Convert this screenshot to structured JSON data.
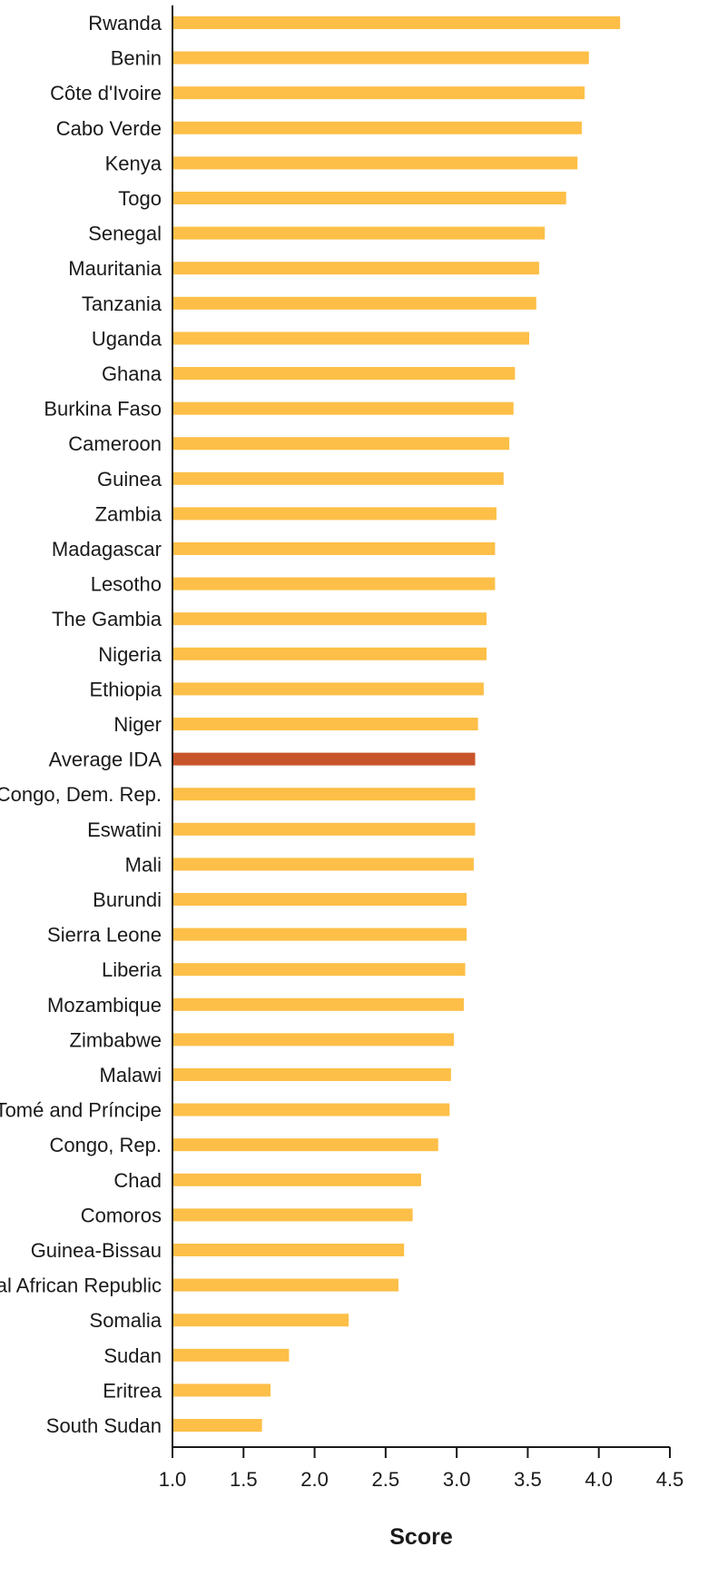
{
  "chart_data": {
    "type": "bar",
    "orientation": "horizontal",
    "xlabel": "Score",
    "xlim": [
      1.0,
      4.5
    ],
    "xticks": [
      "1.0",
      "1.5",
      "2.0",
      "2.5",
      "3.0",
      "3.5",
      "4.0",
      "4.5"
    ],
    "grid": false,
    "colors": {
      "bar": "#FDBF47",
      "highlight": "#C8542A"
    },
    "highlight": "Average IDA",
    "categories": [
      "Rwanda",
      "Benin",
      "Côte d'Ivoire",
      "Cabo Verde",
      "Kenya",
      "Togo",
      "Senegal",
      "Mauritania",
      "Tanzania",
      "Uganda",
      "Ghana",
      "Burkina Faso",
      "Cameroon",
      "Guinea",
      "Zambia",
      "Madagascar",
      "Lesotho",
      "The Gambia",
      "Nigeria",
      "Ethiopia",
      "Niger",
      "Average IDA",
      "Congo, Dem. Rep.",
      "Eswatini",
      "Mali",
      "Burundi",
      "Sierra Leone",
      "Liberia",
      "Mozambique",
      "Zimbabwe",
      "Malawi",
      "São Tomé and Príncipe",
      "Congo, Rep.",
      "Chad",
      "Comoros",
      "Guinea-Bissau",
      "Central African Republic",
      "Somalia",
      "Sudan",
      "Eritrea",
      "South Sudan"
    ],
    "values": [
      4.15,
      3.93,
      3.9,
      3.88,
      3.85,
      3.77,
      3.62,
      3.58,
      3.56,
      3.51,
      3.41,
      3.4,
      3.37,
      3.33,
      3.28,
      3.27,
      3.27,
      3.21,
      3.21,
      3.19,
      3.15,
      3.13,
      3.13,
      3.13,
      3.12,
      3.07,
      3.07,
      3.06,
      3.05,
      2.98,
      2.96,
      2.95,
      2.87,
      2.75,
      2.69,
      2.63,
      2.59,
      2.24,
      1.82,
      1.69,
      1.63
    ]
  }
}
